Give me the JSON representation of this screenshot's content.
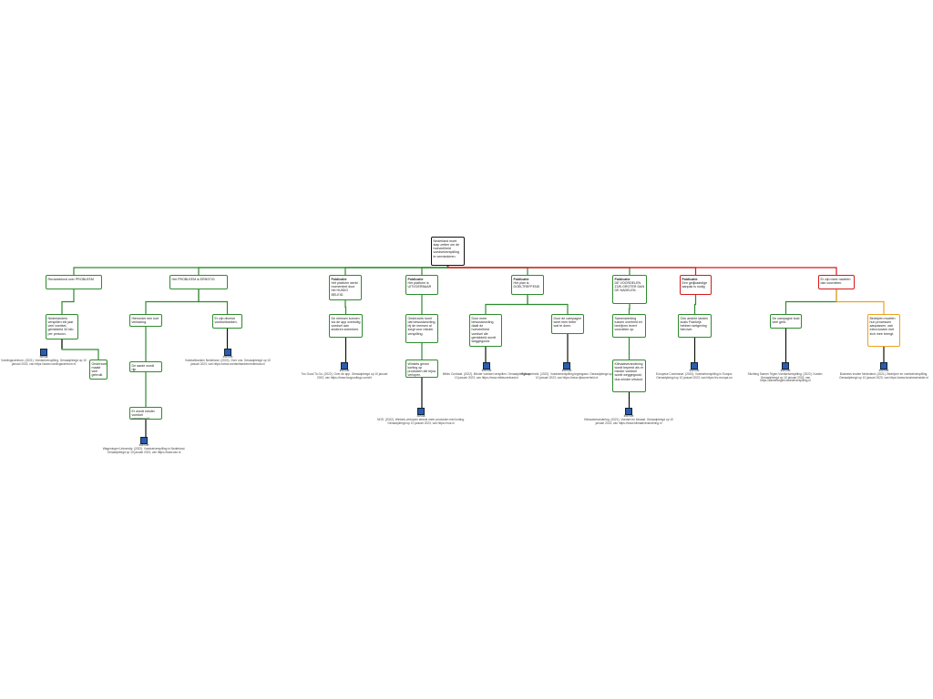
{
  "nodes": [
    {
      "text": "Nederland moet stap zetten om de hoeveelheid voedselverspilling te verminderen."
    },
    {
      "text": "Reclamebord over PROBLEEM"
    },
    {
      "text": "Het PROBLEEM is ERNSTIG"
    },
    {
      "head": "Publicatie",
      "text": "Het platform werkt momenteel door het HUIDIG BELEID."
    },
    {
      "head": "Publicatie",
      "text": "Het platform is UITVOERBAAR"
    },
    {
      "head": "Publicatie",
      "text": "Het plan is DOELTREFFEND"
    },
    {
      "head": "Publicatie",
      "text": "DE VOORDELEN ZIJN GROTER DAN DE NADELEN."
    },
    {
      "head": "Publicatie",
      "text": "Een gelijkaardige aanpak is nodig"
    },
    {
      "text": "Er zijn meer nadelen dan voordelen."
    },
    {
      "text": "Nederlanders verspillen elk jaar veel voedsel, gemiddeld 34 kilo per persoon."
    },
    {
      "text": "Onderzoek maakt veel gebruik van foto's en boodschappen."
    },
    {
      "text": "Hieronder een kort verklaring."
    },
    {
      "text": "Er zijn diverse voedselbanken."
    },
    {
      "text": "De aarde wordt rijp."
    },
    {
      "text": "Er wordt minder voedsel weggegooid."
    },
    {
      "text": "De mensen kunnen via de app overtollig voedsel aan anderen schenken."
    },
    {
      "text": "Onderzoek toont dat bewustwording bij de mensen al zorgt voor minder verspilling."
    },
    {
      "text": "Winkels geven korting op producten die bijna verlopen."
    },
    {
      "text": "Door meer bewustwording daalt de hoeveelheid voedsel die gemiddeld wordt weggegooid."
    },
    {
      "text": "Door de campagne weet men beter wat te doen."
    },
    {
      "text": "Samenwerking tussen overheid en bedrijven levert voordelen op."
    },
    {
      "text": "Klimaatverandering wordt beperkt als er minder voedsel wordt weggegooid, dus minder uitstoot."
    },
    {
      "text": "Ook andere landen zoals Frankrijk hebben wetgeving hierover."
    },
    {
      "text": "De campagne kost veel geld."
    },
    {
      "text": "Bedrijven moeten hun processen aanpassen, wat extra kosten met zich mee brengt."
    }
  ],
  "sources": [
    {
      "type": "Media",
      "citation": "Voedingscentrum. (2021). Voedselverspilling. Geraadpleegd op 10 januari 2023, van https://www.voedingscentrum.nl"
    },
    {
      "type": "Internet",
      "citation": "Voedselbanken Nederland. (2022). Over ons. Geraadpleegd op 10 januari 2023, van https://www.voedselbankennederland.nl"
    },
    {
      "type": "Internet",
      "citation": "Too Good To Go. (2022). Over de app. Geraadpleegd op 10 januari 2023, van https://www.toogoodtogo.com/nl"
    },
    {
      "type": "Media",
      "citation": "NOS. (2022). Winkels verkopen steeds meer producten met korting. Geraadpleegd op 10 januari 2023, van https://nos.nl"
    },
    {
      "type": "Internet",
      "citation": "Milieu Centraal. (2022). Minder voedsel verspillen. Geraadpleegd op 10 januari 2023, van https://www.milieucentraal.nl"
    },
    {
      "type": "Internet",
      "citation": "Rijksoverheid. (2022). Voedselverspilling tegengaan. Geraadpleegd op 10 januari 2023, van https://www.rijksoverheid.nl"
    },
    {
      "type": "Internet",
      "citation": "Klimaatverandering. (2021). Voedsel en klimaat. Geraadpleegd op 10 januari 2023, van https://www.klimaatverandering.nl"
    },
    {
      "type": "Internet",
      "citation": "Europese Commissie. (2020). Voedselverspilling in Europa. Geraadpleegd op 10 januari 2023, van https://ec.europa.eu"
    },
    {
      "type": "Internet",
      "citation": "Stichting Samen Tegen Voedselverspilling. (2022). Kosten. Geraadpleegd op 10 januari 2023, van https://samentegenvoedselverspilling.nl"
    },
    {
      "type": "Internet",
      "citation": "Business Insider Nederland. (2021). Bedrijven en voedselverspilling. Geraadpleegd op 10 januari 2023, van https://www.businessinsider.nl"
    },
    {
      "type": "Internet",
      "citation": "Wageningen University. (2022). Voedselverspilling in Nederland. Geraadpleegd op 10 januari 2023, van https://www.wur.nl"
    }
  ]
}
